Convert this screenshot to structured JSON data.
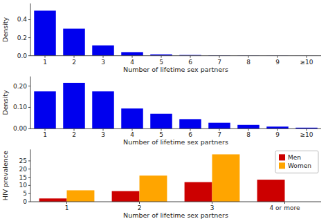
{
  "chart_data": [
    {
      "type": "bar",
      "categories": [
        "1",
        "2",
        "3",
        "4",
        "5",
        "6",
        "7",
        "8",
        "9",
        "≥10"
      ],
      "values": [
        0.5,
        0.3,
        0.115,
        0.04,
        0.015,
        0.008,
        0.005,
        0.003,
        0.002,
        0.001
      ],
      "color": "#0000EE",
      "xlabel": "Number of lifetime sex partners",
      "ylabel": "Density",
      "ylim": [
        0,
        0.58
      ],
      "yticks": [
        {
          "value": 0.0,
          "label": "0.0"
        },
        0.2,
        0.4
      ],
      "grid": false
    },
    {
      "type": "bar",
      "categories": [
        "1",
        "2",
        "3",
        "4",
        "5",
        "6",
        "7",
        "8",
        "9",
        "≥10"
      ],
      "values": [
        0.175,
        0.215,
        0.175,
        0.095,
        0.07,
        0.045,
        0.028,
        0.018,
        0.01,
        0.005
      ],
      "color": "#0000EE",
      "xlabel": "Number of lifetime sex partners",
      "ylabel": "Density",
      "ylim": [
        0,
        0.245
      ],
      "yticks": [
        {
          "value": 0.0,
          "label": "0.00"
        },
        {
          "value": 0.1,
          "label": "0.10"
        },
        {
          "value": 0.2,
          "label": "0.20"
        }
      ],
      "grid": false
    },
    {
      "type": "bar",
      "categories": [
        "1",
        "2",
        "3",
        "4 or more"
      ],
      "series": [
        {
          "name": "Men",
          "color": "#CC0000",
          "values": [
            2.0,
            6.5,
            12.0,
            13.5
          ]
        },
        {
          "name": "Women",
          "color": "#FFA500",
          "values": [
            7.0,
            16.0,
            29.0,
            0.0
          ]
        }
      ],
      "xlabel": "Number of lifetime sex partners",
      "ylabel": "HIV prevalence",
      "ylim": [
        0,
        32
      ],
      "yticks": [
        0,
        5,
        10,
        15,
        20,
        25
      ],
      "legend": "upper right",
      "grid": false
    }
  ]
}
